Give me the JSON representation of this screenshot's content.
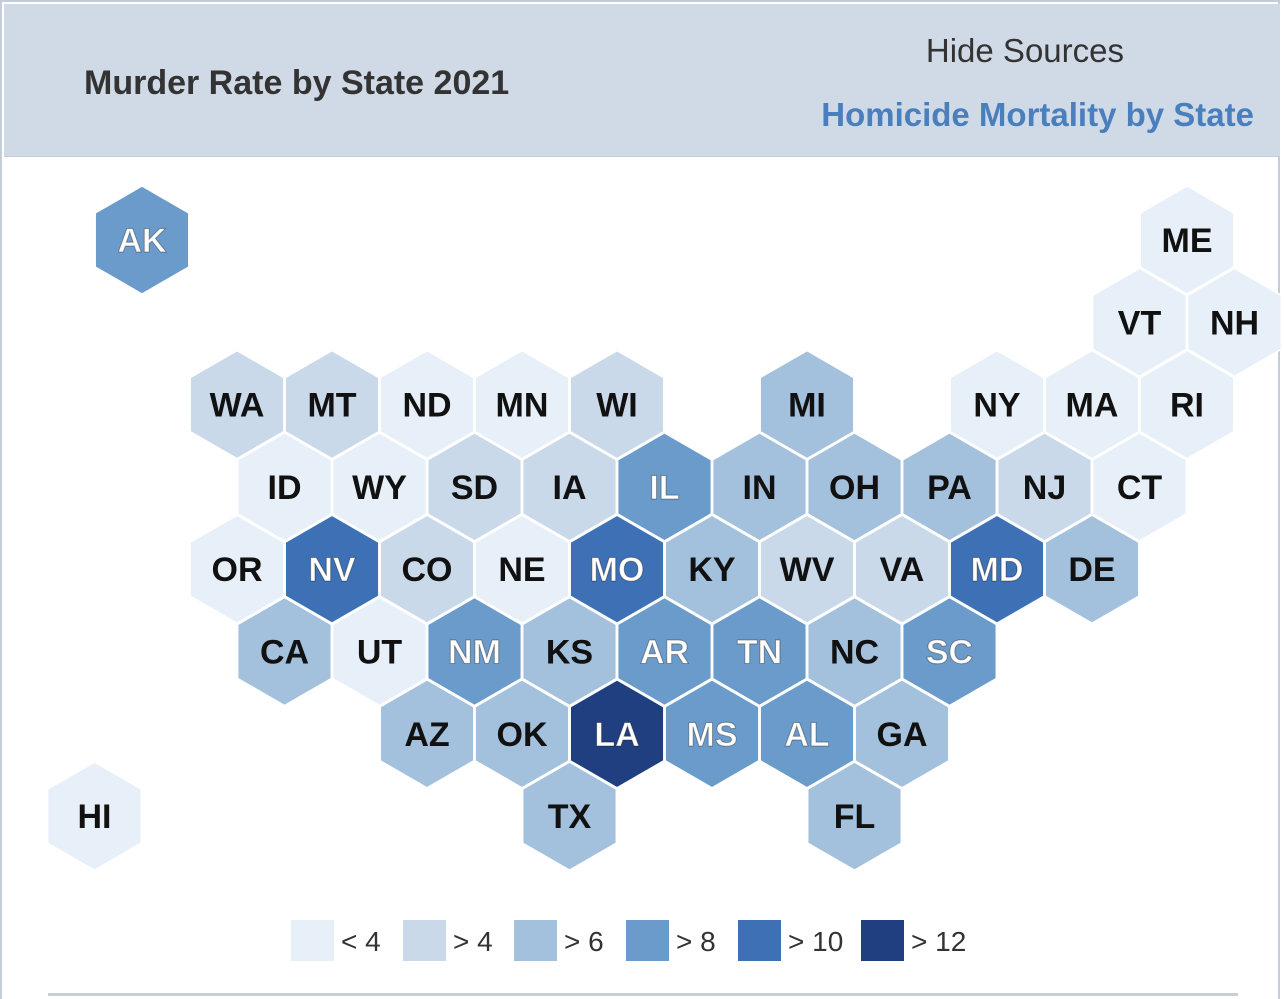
{
  "header": {
    "title": "Murder Rate by State 2021",
    "hide_sources_label": "Hide Sources",
    "source_link_label": "Homicide Mortality by State"
  },
  "colors": {
    "lt4": "#e7eff8",
    "gt4": "#cad9ea",
    "gt6": "#a3c0dc",
    "gt8": "#6a9bcb",
    "gt10": "#3d70b5",
    "gt12": "#1f3f80",
    "header_bg": "#d0dae6",
    "link": "#4a7fbd"
  },
  "legend": [
    {
      "label": "< 4",
      "bin": "lt4"
    },
    {
      "label": "> 4",
      "bin": "gt4"
    },
    {
      "label": "> 6",
      "bin": "gt6"
    },
    {
      "label": "> 8",
      "bin": "gt8"
    },
    {
      "label": "> 10",
      "bin": "gt10"
    },
    {
      "label": "> 12",
      "bin": "gt12"
    }
  ],
  "states": [
    {
      "abbr": "AK",
      "row": 0,
      "col": 1,
      "bin": "gt8"
    },
    {
      "abbr": "ME",
      "row": 0,
      "col": 12,
      "bin": "lt4"
    },
    {
      "abbr": "VT",
      "row": 1,
      "col": 11,
      "bin": "lt4"
    },
    {
      "abbr": "NH",
      "row": 1,
      "col": 12,
      "bin": "lt4"
    },
    {
      "abbr": "WA",
      "row": 2,
      "col": 2,
      "bin": "gt4"
    },
    {
      "abbr": "MT",
      "row": 2,
      "col": 3,
      "bin": "gt4"
    },
    {
      "abbr": "ND",
      "row": 2,
      "col": 4,
      "bin": "lt4"
    },
    {
      "abbr": "MN",
      "row": 2,
      "col": 5,
      "bin": "lt4"
    },
    {
      "abbr": "WI",
      "row": 2,
      "col": 6,
      "bin": "gt4"
    },
    {
      "abbr": "MI",
      "row": 2,
      "col": 8,
      "bin": "gt6"
    },
    {
      "abbr": "NY",
      "row": 2,
      "col": 10,
      "bin": "lt4"
    },
    {
      "abbr": "MA",
      "row": 2,
      "col": 11,
      "bin": "lt4"
    },
    {
      "abbr": "RI",
      "row": 2,
      "col": 12,
      "bin": "lt4"
    },
    {
      "abbr": "ID",
      "row": 3,
      "col": 2,
      "bin": "lt4"
    },
    {
      "abbr": "WY",
      "row": 3,
      "col": 3,
      "bin": "lt4"
    },
    {
      "abbr": "SD",
      "row": 3,
      "col": 4,
      "bin": "gt4"
    },
    {
      "abbr": "IA",
      "row": 3,
      "col": 5,
      "bin": "gt4"
    },
    {
      "abbr": "IL",
      "row": 3,
      "col": 6,
      "bin": "gt8"
    },
    {
      "abbr": "IN",
      "row": 3,
      "col": 7,
      "bin": "gt6"
    },
    {
      "abbr": "OH",
      "row": 3,
      "col": 8,
      "bin": "gt6"
    },
    {
      "abbr": "PA",
      "row": 3,
      "col": 9,
      "bin": "gt6"
    },
    {
      "abbr": "NJ",
      "row": 3,
      "col": 10,
      "bin": "gt4"
    },
    {
      "abbr": "CT",
      "row": 3,
      "col": 11,
      "bin": "lt4"
    },
    {
      "abbr": "OR",
      "row": 4,
      "col": 2,
      "bin": "lt4"
    },
    {
      "abbr": "NV",
      "row": 4,
      "col": 3,
      "bin": "gt10"
    },
    {
      "abbr": "CO",
      "row": 4,
      "col": 4,
      "bin": "gt4"
    },
    {
      "abbr": "NE",
      "row": 4,
      "col": 5,
      "bin": "lt4"
    },
    {
      "abbr": "MO",
      "row": 4,
      "col": 6,
      "bin": "gt10"
    },
    {
      "abbr": "KY",
      "row": 4,
      "col": 7,
      "bin": "gt6"
    },
    {
      "abbr": "WV",
      "row": 4,
      "col": 8,
      "bin": "gt4"
    },
    {
      "abbr": "VA",
      "row": 4,
      "col": 9,
      "bin": "gt4"
    },
    {
      "abbr": "MD",
      "row": 4,
      "col": 10,
      "bin": "gt10"
    },
    {
      "abbr": "DE",
      "row": 4,
      "col": 11,
      "bin": "gt6"
    },
    {
      "abbr": "CA",
      "row": 5,
      "col": 2,
      "bin": "gt6"
    },
    {
      "abbr": "UT",
      "row": 5,
      "col": 3,
      "bin": "lt4"
    },
    {
      "abbr": "NM",
      "row": 5,
      "col": 4,
      "bin": "gt8"
    },
    {
      "abbr": "KS",
      "row": 5,
      "col": 5,
      "bin": "gt6"
    },
    {
      "abbr": "AR",
      "row": 5,
      "col": 6,
      "bin": "gt8"
    },
    {
      "abbr": "TN",
      "row": 5,
      "col": 7,
      "bin": "gt8"
    },
    {
      "abbr": "NC",
      "row": 5,
      "col": 8,
      "bin": "gt6"
    },
    {
      "abbr": "SC",
      "row": 5,
      "col": 9,
      "bin": "gt8"
    },
    {
      "abbr": "AZ",
      "row": 6,
      "col": 4,
      "bin": "gt6"
    },
    {
      "abbr": "OK",
      "row": 6,
      "col": 5,
      "bin": "gt6"
    },
    {
      "abbr": "LA",
      "row": 6,
      "col": 6,
      "bin": "gt12"
    },
    {
      "abbr": "MS",
      "row": 6,
      "col": 7,
      "bin": "gt8"
    },
    {
      "abbr": "AL",
      "row": 6,
      "col": 8,
      "bin": "gt8"
    },
    {
      "abbr": "GA",
      "row": 6,
      "col": 9,
      "bin": "gt6"
    },
    {
      "abbr": "HI",
      "row": 7,
      "col": 0,
      "bin": "lt4"
    },
    {
      "abbr": "TX",
      "row": 7,
      "col": 5,
      "bin": "gt6"
    },
    {
      "abbr": "FL",
      "row": 7,
      "col": 8,
      "bin": "gt6"
    }
  ]
}
